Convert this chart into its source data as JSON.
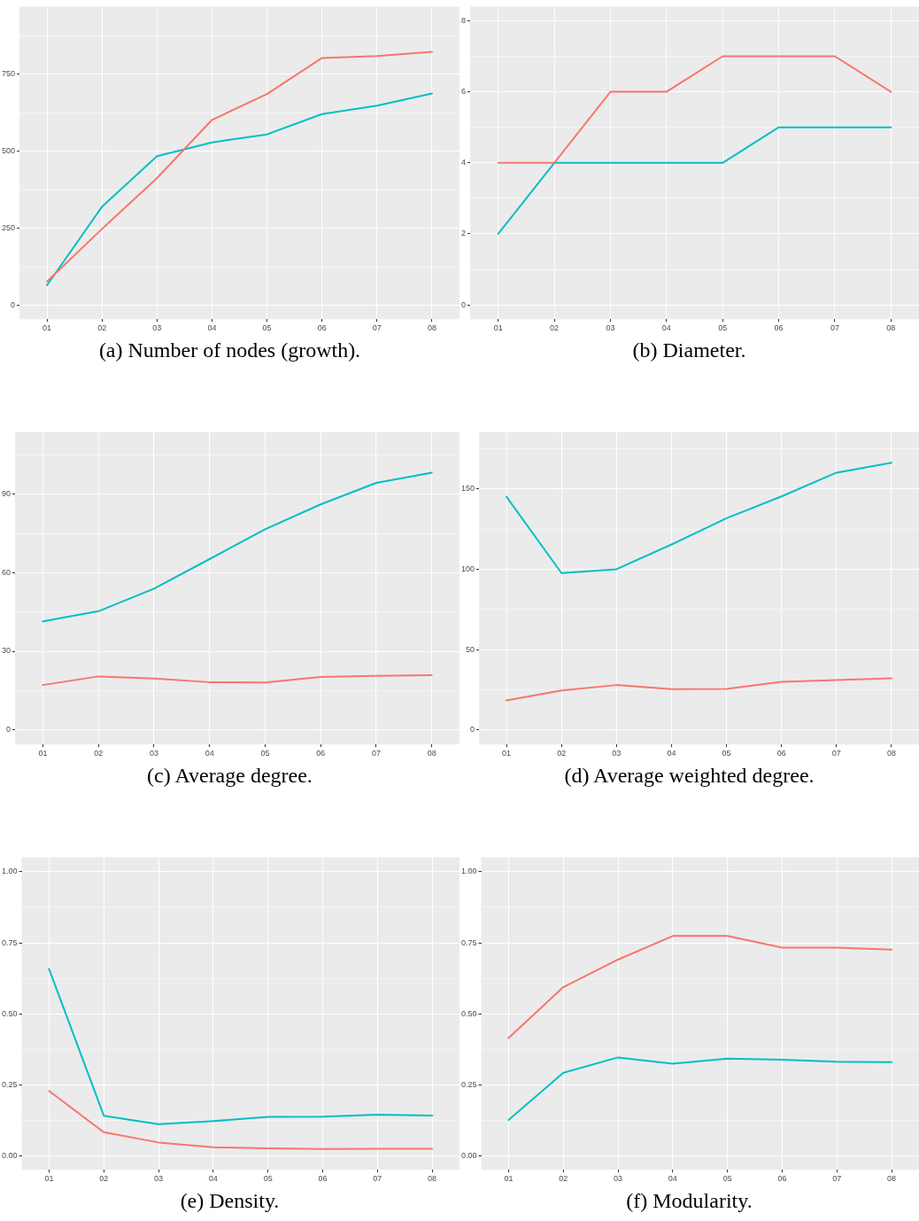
{
  "chart_data": [
    {
      "type": "line",
      "title": "(a) Number of nodes (growth).",
      "categories": [
        "01",
        "02",
        "03",
        "04",
        "05",
        "06",
        "07",
        "08"
      ],
      "grid": true,
      "ylim": [
        -45,
        970
      ],
      "yticks": [
        0,
        {
          "value": 125,
          "label": null
        },
        250,
        {
          "value": 375,
          "label": null
        },
        500,
        {
          "value": 625,
          "label": null
        },
        750,
        {
          "value": 875,
          "label": null
        }
      ],
      "series": [
        {
          "color": "#f8766d",
          "values": [
            77,
            248,
            413,
            602,
            686,
            803,
            809,
            823
          ]
        },
        {
          "color": "#00bfc4",
          "values": [
            65,
            320,
            484,
            529,
            555,
            621,
            648,
            688
          ]
        }
      ]
    },
    {
      "type": "line",
      "title": "(b) Diameter.",
      "categories": [
        "01",
        "02",
        "03",
        "04",
        "05",
        "06",
        "07",
        "08"
      ],
      "grid": true,
      "ylim": [
        -0.4,
        8.4
      ],
      "yticks": [
        0,
        {
          "value": 1,
          "label": null
        },
        2,
        {
          "value": 3,
          "label": null
        },
        4,
        {
          "value": 5,
          "label": null
        },
        6,
        {
          "value": 7,
          "label": null
        },
        8
      ],
      "series": [
        {
          "color": "#f8766d",
          "values": [
            4,
            4,
            6,
            6,
            7,
            7,
            7,
            6
          ]
        },
        {
          "color": "#00bfc4",
          "values": [
            2,
            4,
            4,
            4,
            4,
            5,
            5,
            5
          ]
        }
      ]
    },
    {
      "type": "line",
      "title": "(c) Average degree.",
      "categories": [
        "01",
        "02",
        "03",
        "04",
        "05",
        "06",
        "07",
        "08"
      ],
      "grid": true,
      "ylim": [
        -5.6,
        113.8
      ],
      "yticks": [
        0,
        {
          "value": 15,
          "label": null
        },
        30,
        {
          "value": 45,
          "label": null
        },
        60,
        {
          "value": 75,
          "label": null
        },
        90,
        {
          "value": 105,
          "label": null
        }
      ],
      "series": [
        {
          "color": "#f8766d",
          "values": [
            17.1,
            20.4,
            19.6,
            18.2,
            18.1,
            20.2,
            20.6,
            20.9
          ]
        },
        {
          "color": "#00bfc4",
          "values": [
            41.4,
            45.3,
            53.9,
            65.2,
            76.6,
            86.1,
            94.3,
            98.2
          ]
        }
      ]
    },
    {
      "type": "line",
      "title": "(d) Average weighted degree.",
      "categories": [
        "01",
        "02",
        "03",
        "04",
        "05",
        "06",
        "07",
        "08"
      ],
      "grid": true,
      "ylim": [
        -9.1,
        185.5
      ],
      "yticks": [
        0,
        {
          "value": 25,
          "label": null
        },
        50,
        {
          "value": 75,
          "label": null
        },
        100,
        {
          "value": 125,
          "label": null
        },
        150,
        {
          "value": 175,
          "label": null
        }
      ],
      "series": [
        {
          "color": "#f8766d",
          "values": [
            18.3,
            24.5,
            27.9,
            25.4,
            25.5,
            29.9,
            31.0,
            32.1
          ]
        },
        {
          "color": "#00bfc4",
          "values": [
            145.1,
            97.6,
            100,
            115.4,
            131.7,
            145.3,
            160.1,
            166.3
          ]
        }
      ]
    },
    {
      "type": "line",
      "title": "(e) Density.",
      "categories": [
        "01",
        "02",
        "03",
        "04",
        "05",
        "06",
        "07",
        "08"
      ],
      "grid": true,
      "ylim": [
        -0.048,
        1.051
      ],
      "yticks": [
        {
          "value": 0,
          "label": "0.00"
        },
        {
          "value": 0.125,
          "label": null
        },
        0.25,
        {
          "value": 0.375,
          "label": null
        },
        {
          "value": 0.5,
          "label": "0.50"
        },
        {
          "value": 0.625,
          "label": null
        },
        0.75,
        {
          "value": 0.875,
          "label": null
        },
        {
          "value": 1,
          "label": "1.00"
        }
      ],
      "series": [
        {
          "color": "#f8766d",
          "values": [
            0.229,
            0.084,
            0.048,
            0.031,
            0.027,
            0.025,
            0.026,
            0.026
          ]
        },
        {
          "color": "#00bfc4",
          "values": [
            0.658,
            0.142,
            0.112,
            0.123,
            0.138,
            0.139,
            0.146,
            0.143
          ]
        }
      ]
    },
    {
      "type": "line",
      "title": "(f) Modularity.",
      "categories": [
        "01",
        "02",
        "03",
        "04",
        "05",
        "06",
        "07",
        "08"
      ],
      "grid": true,
      "ylim": [
        -0.048,
        1.051
      ],
      "yticks": [
        {
          "value": 0,
          "label": "0.00"
        },
        {
          "value": 0.125,
          "label": null
        },
        0.25,
        {
          "value": 0.375,
          "label": null
        },
        {
          "value": 0.5,
          "label": "0.50"
        },
        {
          "value": 0.625,
          "label": null
        },
        0.75,
        {
          "value": 0.875,
          "label": null
        },
        {
          "value": 1,
          "label": "1.00"
        }
      ],
      "series": [
        {
          "color": "#f8766d",
          "values": [
            0.415,
            0.594,
            0.691,
            0.774,
            0.774,
            0.733,
            0.733,
            0.726
          ]
        },
        {
          "color": "#00bfc4",
          "values": [
            0.127,
            0.293,
            0.347,
            0.325,
            0.343,
            0.339,
            0.332,
            0.33
          ]
        }
      ]
    }
  ]
}
